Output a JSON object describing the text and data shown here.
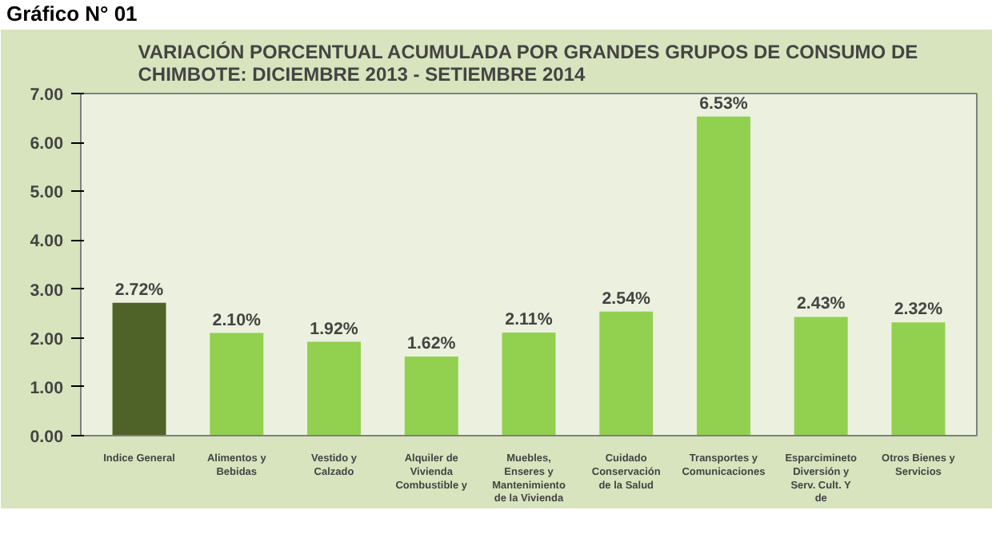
{
  "chart_data": {
    "type": "bar",
    "title": "VARIACIÓN PORCENTUAL ACUMULADA POR GRANDES GRUPOS DE CONSUMO DE CHIMBOTE:  DICIEMBRE  2013 - SETIEMBRE 2014",
    "annotations": [
      "Gráfico N° 01"
    ],
    "categories": [
      "Indice General",
      "Alimentos y Bebidas",
      "Vestido y Calzado",
      "Alquiler de Vivienda Combustible y",
      "Muebles, Enseres y Mantenimiento de la Vivienda",
      "Cuidado Conservación de la Salud",
      "Transportes y Comunicaciones",
      "Esparcimineto Diversión y Serv. Cult. Y de",
      "Otros Bienes y Servicios"
    ],
    "values": [
      2.72,
      2.1,
      1.92,
      1.62,
      2.11,
      2.54,
      6.53,
      2.43,
      2.32
    ],
    "value_labels": [
      "2.72%",
      "2.10%",
      "1.92%",
      "1.62%",
      "2.11%",
      "2.54%",
      "6.53%",
      "2.43%",
      "2.32%"
    ],
    "colors": [
      "#4f6228",
      "#92d050",
      "#92d050",
      "#92d050",
      "#92d050",
      "#92d050",
      "#92d050",
      "#92d050",
      "#92d050"
    ],
    "ylim": [
      0,
      7
    ],
    "yticks": [
      {
        "value": 0,
        "label": "0.00"
      },
      {
        "value": 1,
        "label": "1.00"
      },
      {
        "value": 2,
        "label": "2.00"
      },
      {
        "value": 3,
        "label": "3.00"
      },
      {
        "value": 4,
        "label": "4.00"
      },
      {
        "value": 5,
        "label": "5.00"
      },
      {
        "value": 6,
        "label": "6.00"
      },
      {
        "value": 7,
        "label": "7.00"
      }
    ],
    "grid": false
  }
}
